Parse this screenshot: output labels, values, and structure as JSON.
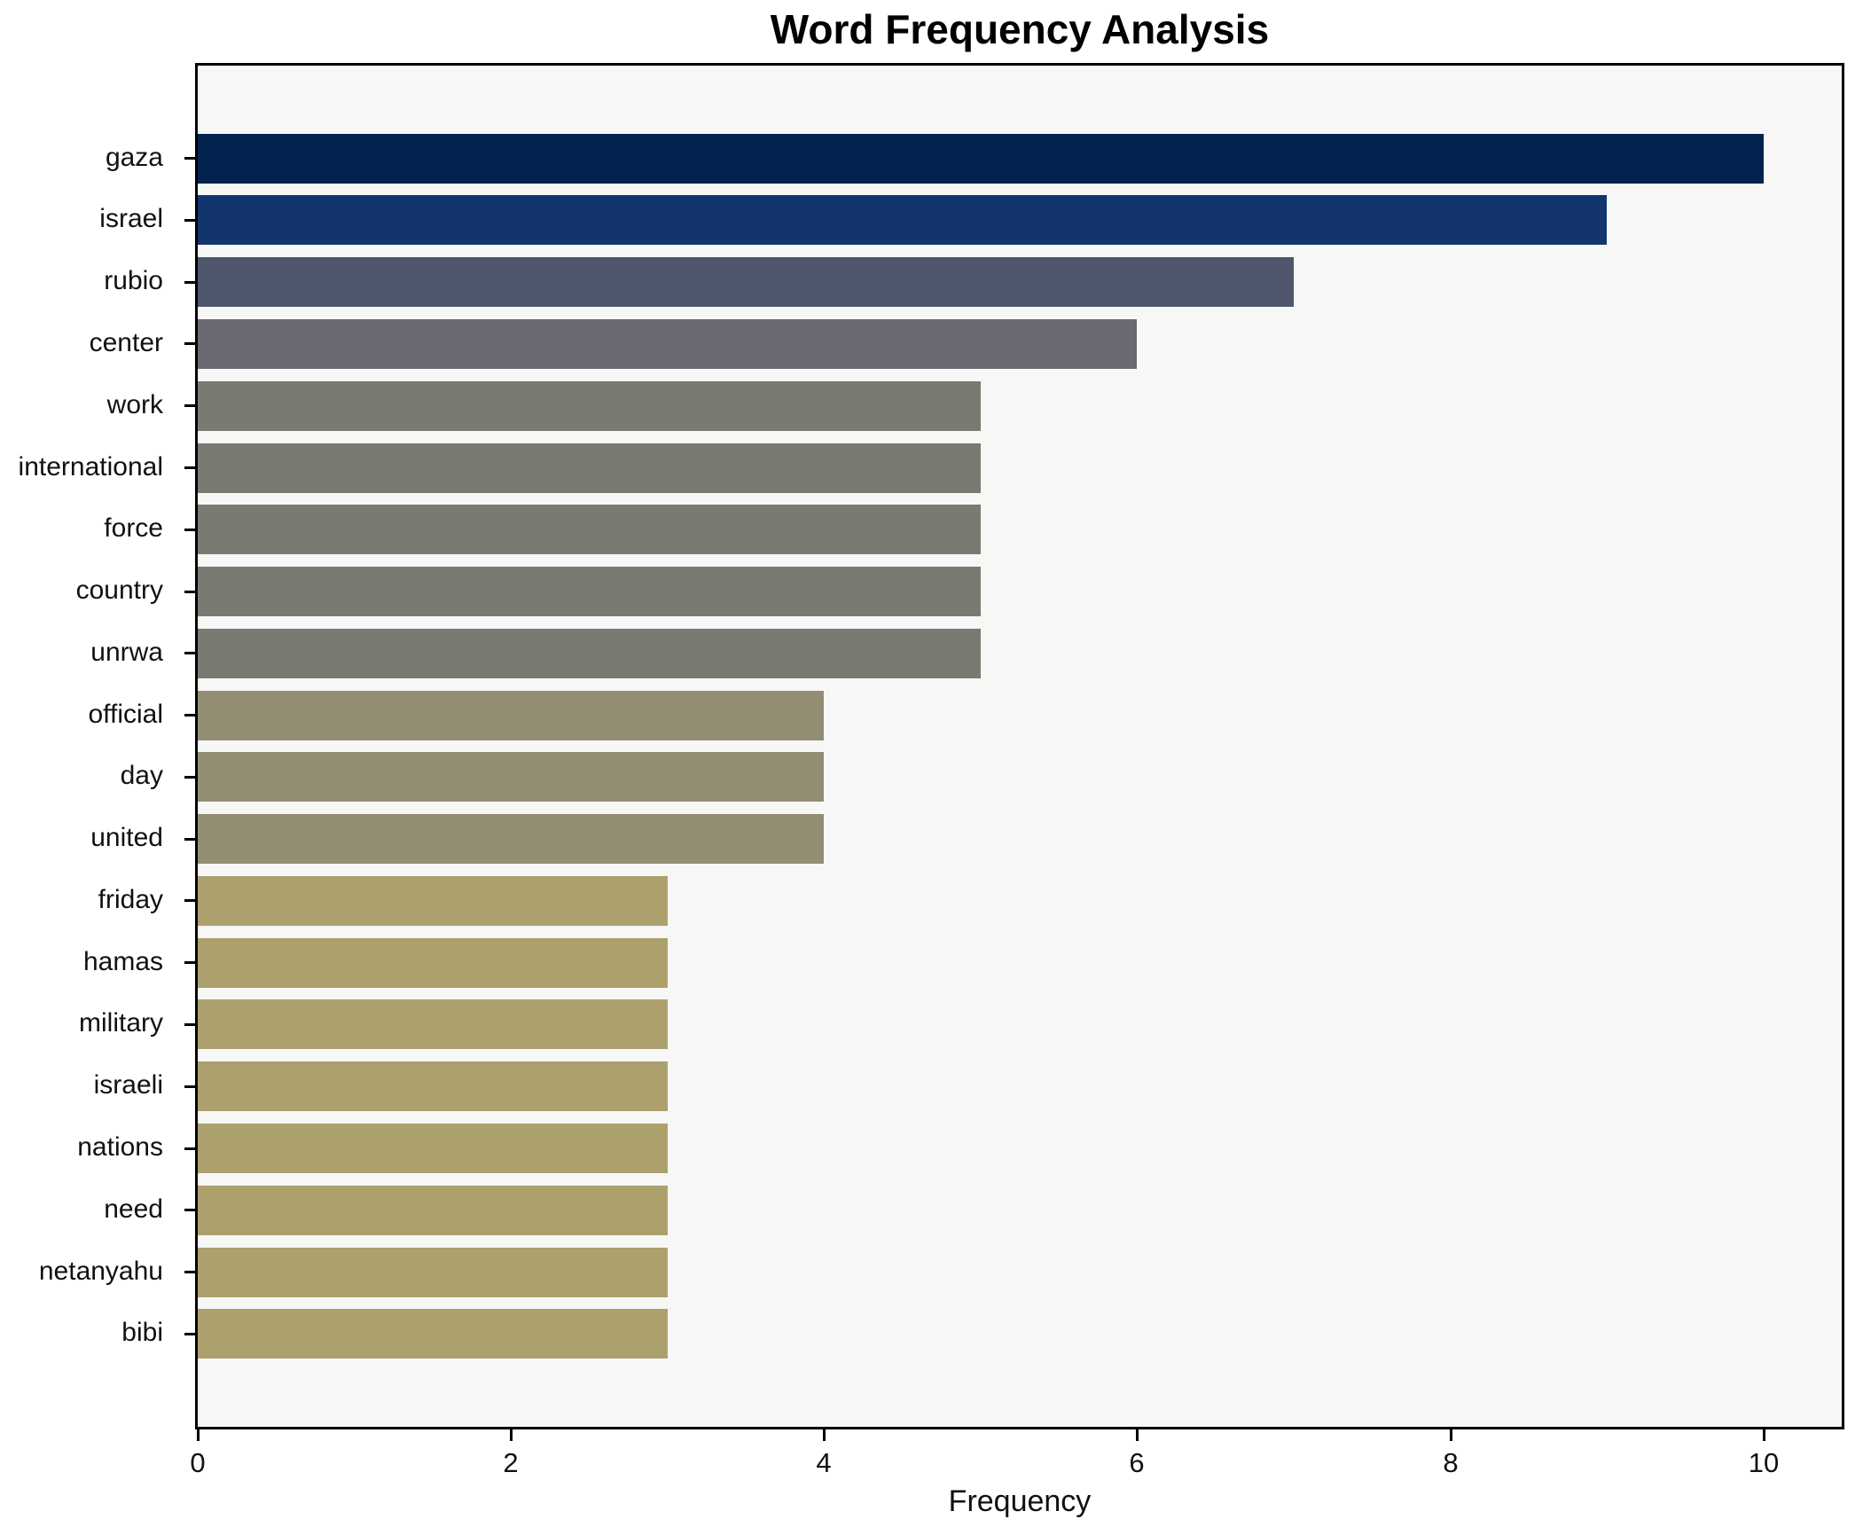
{
  "chart_data": {
    "type": "bar",
    "orientation": "horizontal",
    "title": "Word Frequency Analysis",
    "xlabel": "Frequency",
    "ylabel": "",
    "categories": [
      "gaza",
      "israel",
      "rubio",
      "center",
      "work",
      "international",
      "force",
      "country",
      "unrwa",
      "official",
      "day",
      "united",
      "friday",
      "hamas",
      "military",
      "israeli",
      "nations",
      "need",
      "netanyahu",
      "bibi"
    ],
    "values": [
      10,
      9,
      7,
      6,
      5,
      5,
      5,
      5,
      5,
      4,
      4,
      4,
      3,
      3,
      3,
      3,
      3,
      3,
      3,
      3
    ],
    "bar_colors": [
      "#02234e",
      "#12356f",
      "#4e566c",
      "#696a73",
      "#7a7a73",
      "#7a7a73",
      "#7a7a73",
      "#7a7a73",
      "#7a7a73",
      "#938d74",
      "#938d74",
      "#938d74",
      "#aca06d",
      "#aca06d",
      "#aca06d",
      "#aca06d",
      "#aca06d",
      "#aca06d",
      "#aca06d",
      "#aca06d"
    ],
    "xlim": [
      0,
      10.5
    ],
    "xticks": [
      0,
      2,
      4,
      6,
      8,
      10
    ],
    "grid": false,
    "legend": null,
    "bar_rel_height": 0.8,
    "plot_bg": "#f7f7f6",
    "figure_bg": "#ffffff",
    "spine_color": "#000000"
  }
}
